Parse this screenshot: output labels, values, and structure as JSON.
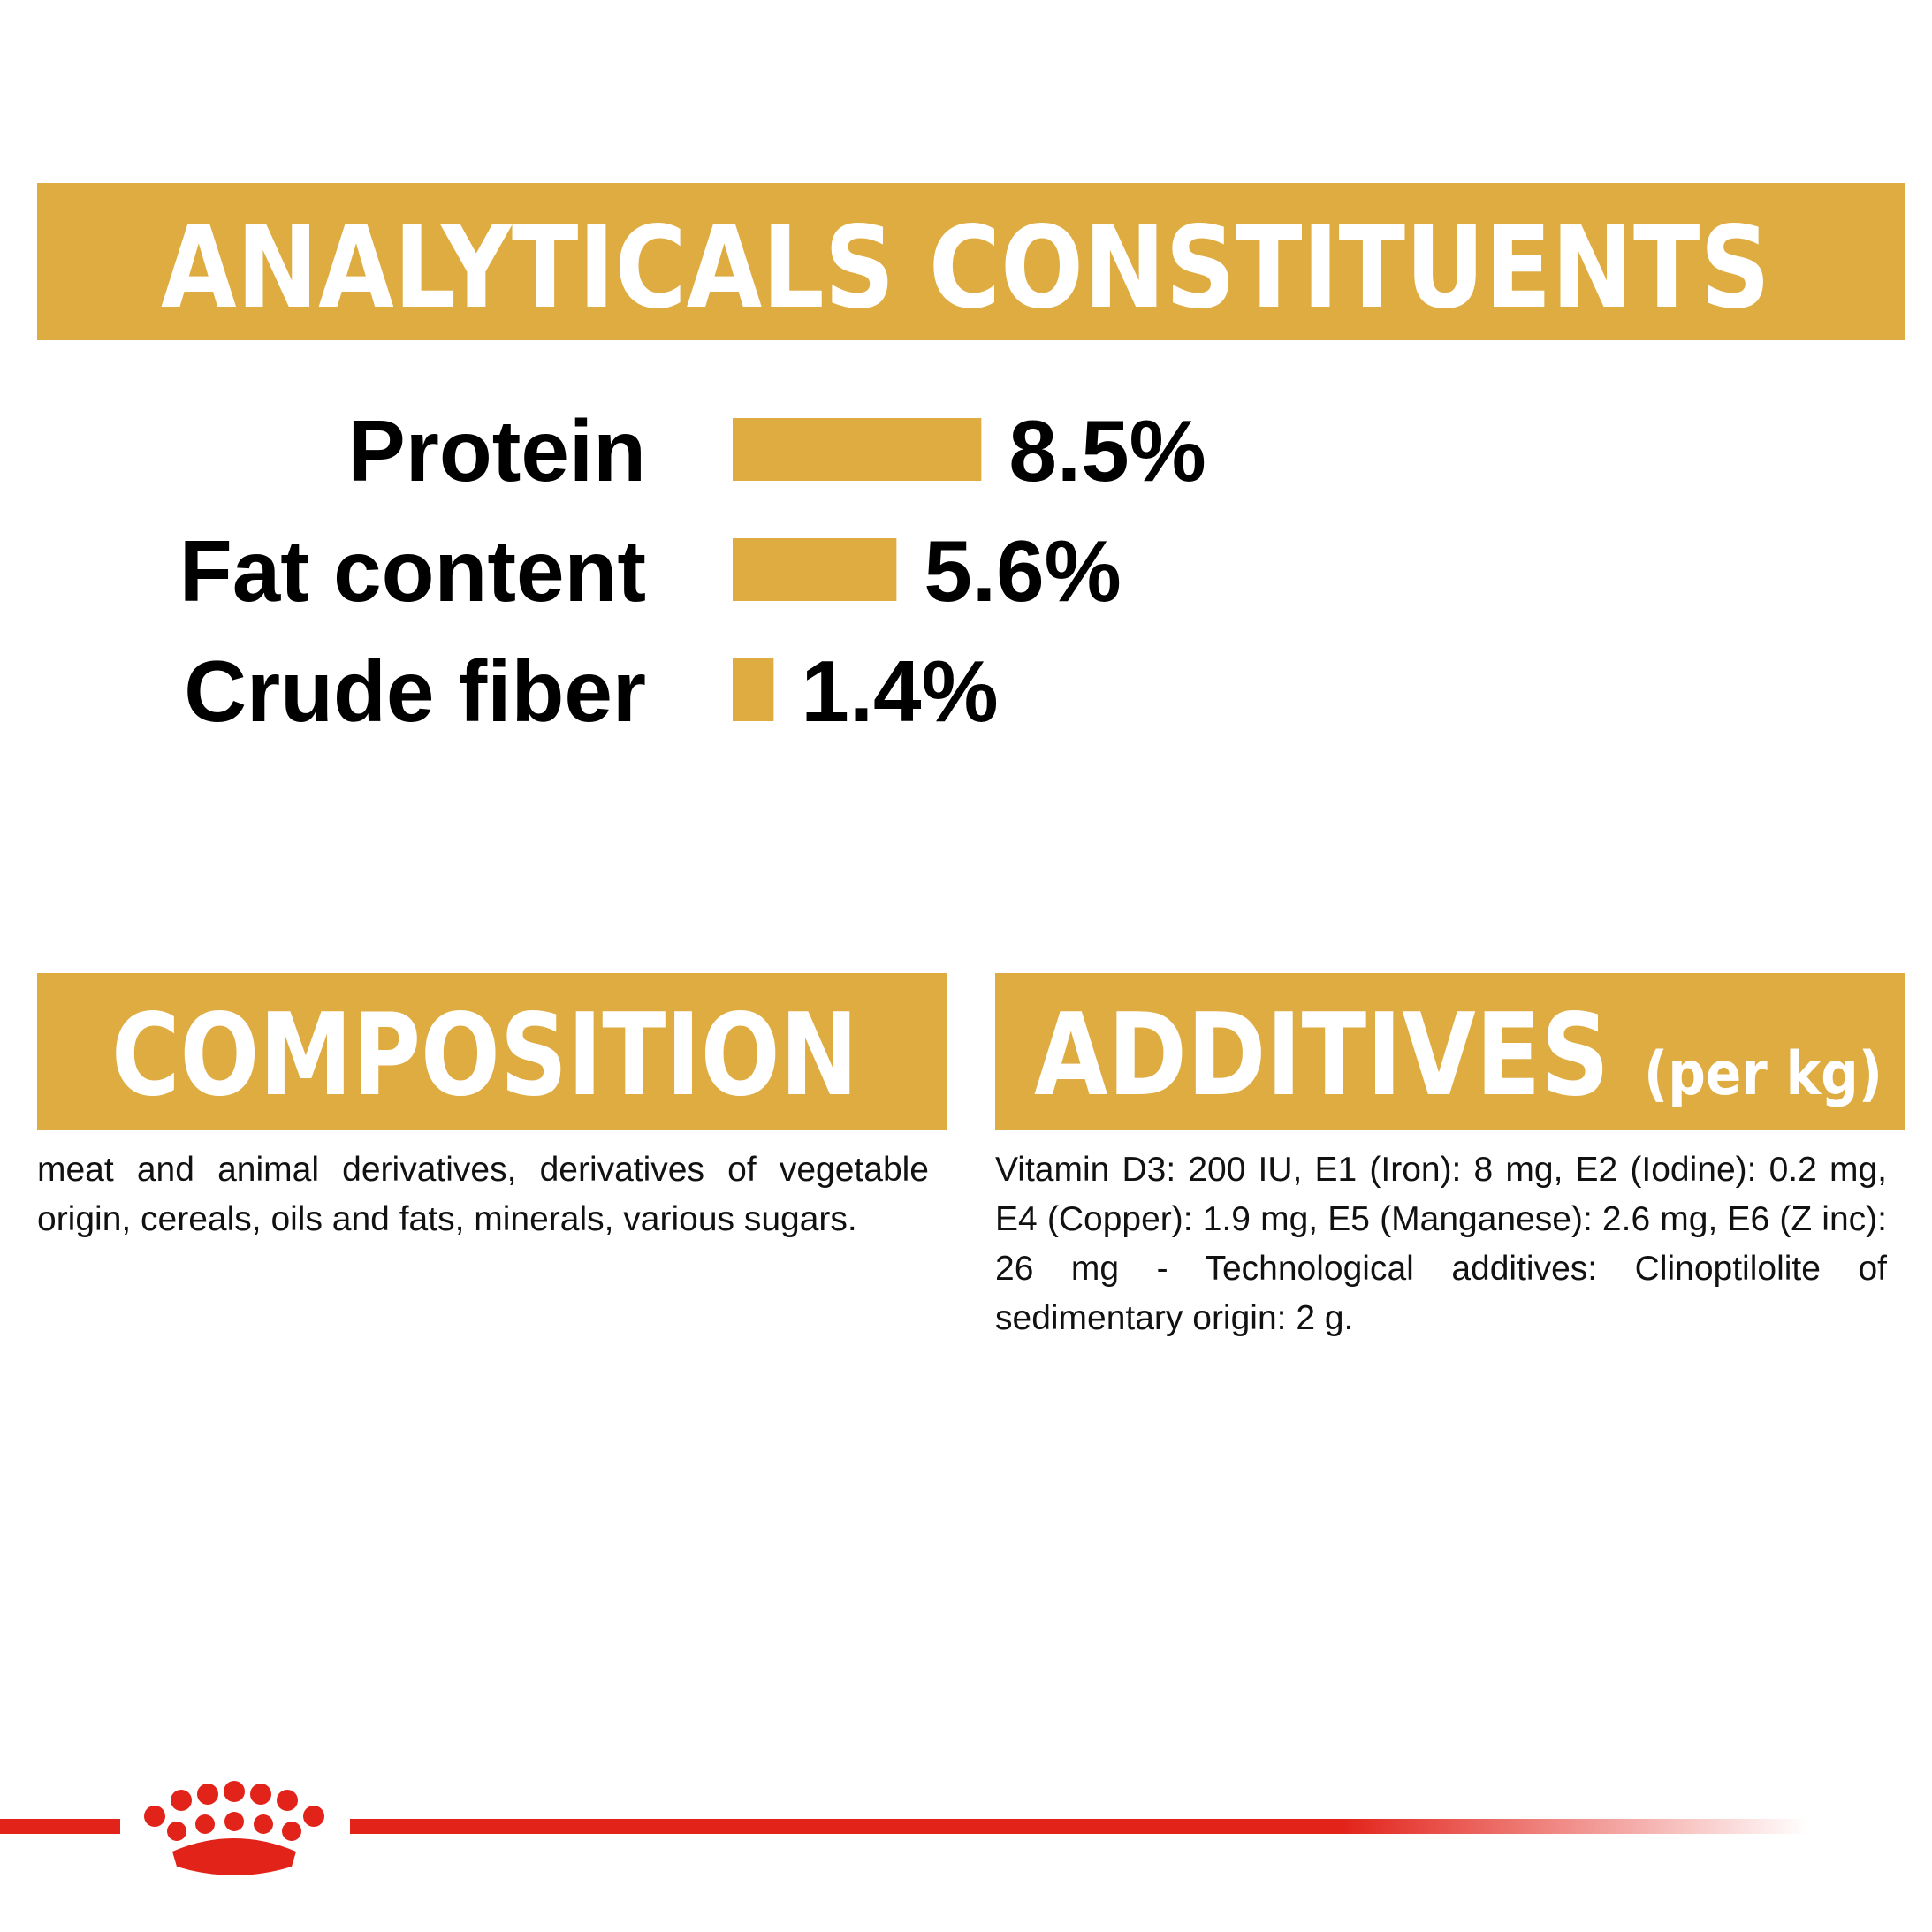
{
  "chart_data": {
    "type": "bar",
    "title": "ANALYTICALS CONSTITUENTS",
    "categories": [
      "Protein",
      "Fat content",
      "Crude fiber"
    ],
    "values": [
      8.5,
      5.6,
      1.4
    ],
    "value_labels": [
      "8.5%",
      "5.6%",
      "1.4%"
    ],
    "color": "#dfac42"
  },
  "composition": {
    "title": "COMPOSITION",
    "text": "meat and animal derivatives, derivatives of vegetable origin, cereals, oils and fats, minerals, various sugars."
  },
  "additives": {
    "title": "ADDITIVES",
    "unit": "(per kg)",
    "text": "Vitamin D3: 200 IU, E1 (Iron): 8 mg, E2 (Iodine): 0.2 mg, E4 (Copper): 1.9 mg, E5 (Manganese): 2.6 mg, E6 (Z inc): 26 mg - Technological additives: Clinoptilolite of sedimentary origin: 2 g."
  }
}
